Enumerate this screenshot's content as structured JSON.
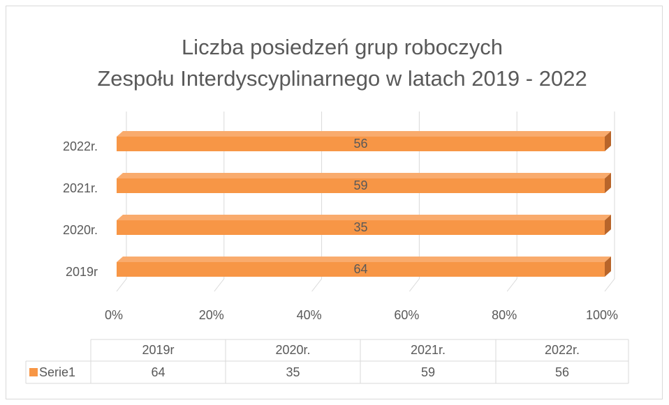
{
  "chart_data": {
    "type": "bar100h",
    "title": "Liczba posiedzeń grup roboczych Zespołu Interdyscyplinarnego w latach 2019 - 2022",
    "categories": [
      "2019r",
      "2020r.",
      "2021r.",
      "2022r."
    ],
    "series": [
      {
        "name": "Serie1",
        "color": "#f79646",
        "values": [
          64,
          35,
          59,
          56
        ]
      }
    ],
    "xlim": [
      0,
      100
    ],
    "xticks": [
      {
        "value": 0,
        "label": "0%"
      },
      {
        "value": 20,
        "label": "20%"
      },
      {
        "value": 40,
        "label": "40%"
      },
      {
        "value": 60,
        "label": "60%"
      },
      {
        "value": 80,
        "label": "80%"
      },
      {
        "value": 100,
        "label": "100%"
      }
    ],
    "grid": true,
    "data_table": true
  }
}
